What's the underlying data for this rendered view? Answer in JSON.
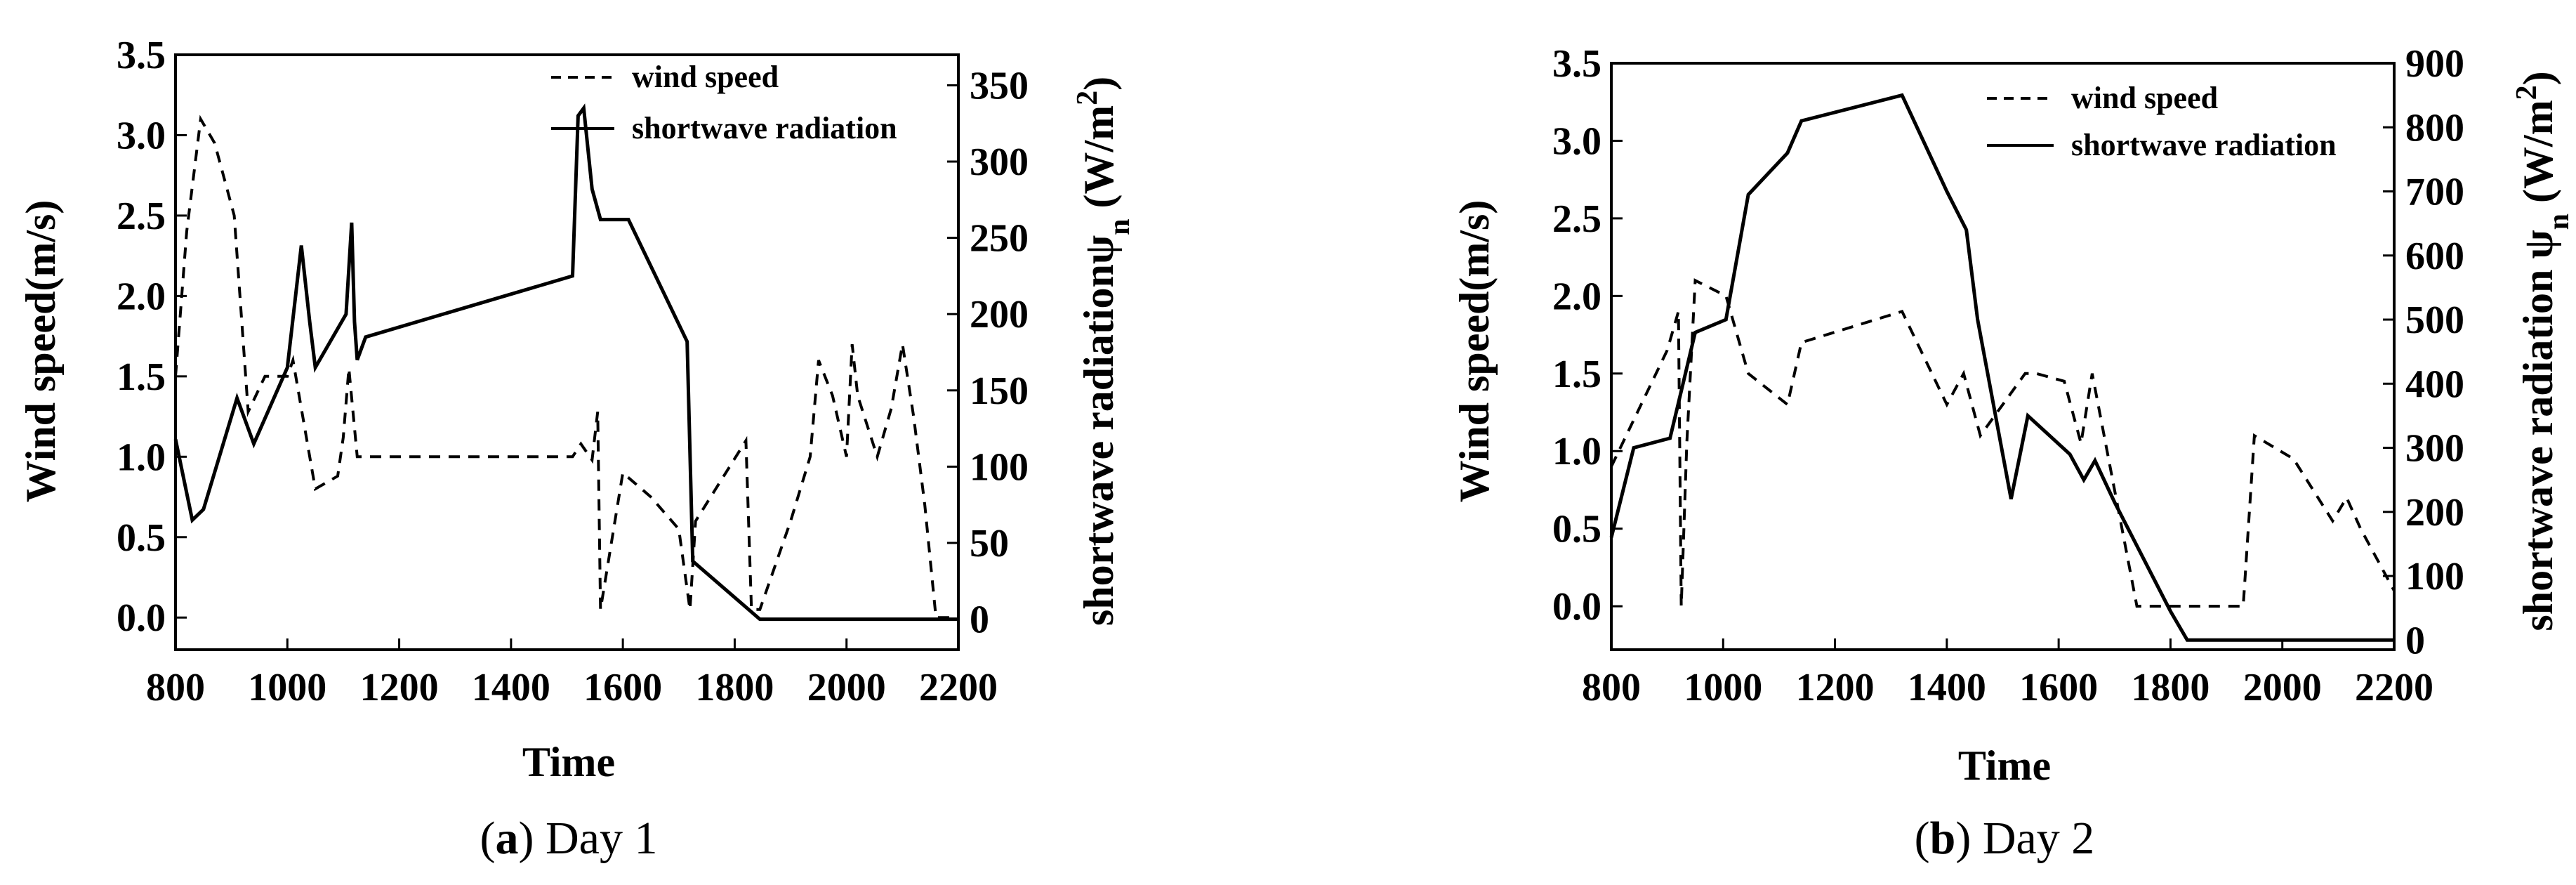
{
  "chart_data": [
    {
      "type": "line",
      "caption": {
        "letter": "a",
        "text": "Day 1"
      },
      "xlabel": "Time",
      "ylabel": "Wind speed(m/s)",
      "y2label": {
        "main": "shortwave radiation",
        "sym": "ψ",
        "sub": "n",
        "unit_open": " (W/m",
        "sup": "2",
        "unit_close": ")"
      },
      "xlim": [
        800,
        2200
      ],
      "ylim": [
        -0.2,
        3.5
      ],
      "y2lim": [
        -20,
        370
      ],
      "xticks": [
        "800",
        "1000",
        "1200",
        "1400",
        "1600",
        "1800",
        "2000",
        "2200"
      ],
      "yticks": [
        "0.0",
        "0.5",
        "1.0",
        "1.5",
        "2.0",
        "2.5",
        "3.0",
        "3.5"
      ],
      "y2ticks": [
        "0",
        "50",
        "100",
        "150",
        "200",
        "250",
        "300",
        "350"
      ],
      "legend_position": "top-right",
      "series": [
        {
          "name": "wind speed",
          "axis": "left",
          "style": "dashed",
          "x": [
            800,
            820,
            845,
            870,
            905,
            930,
            960,
            1000,
            1010,
            1050,
            1090,
            1100,
            1110,
            1125,
            1510,
            1525,
            1545,
            1555,
            1560,
            1600,
            1650,
            1700,
            1720,
            1730,
            1820,
            1830,
            1845,
            1900,
            1935,
            1950,
            1975,
            2000,
            2010,
            2020,
            2055,
            2080,
            2100,
            2120,
            2140,
            2160,
            2200
          ],
          "y": [
            1.5,
            2.4,
            3.1,
            2.95,
            2.5,
            1.28,
            1.5,
            1.5,
            1.6,
            0.8,
            0.88,
            1.12,
            1.55,
            1.0,
            1.0,
            1.08,
            0.98,
            1.28,
            0.05,
            0.9,
            0.75,
            0.55,
            0.05,
            0.6,
            1.1,
            0.05,
            0.05,
            0.6,
            1.0,
            1.6,
            1.38,
            1.0,
            1.7,
            1.38,
            1.0,
            1.3,
            1.7,
            1.25,
            0.7,
            0.0,
            0.0
          ]
        },
        {
          "name": "shortwave radiation",
          "axis": "right",
          "style": "solid",
          "x": [
            800,
            830,
            850,
            910,
            940,
            1000,
            1025,
            1040,
            1050,
            1105,
            1115,
            1120,
            1125,
            1140,
            1510,
            1520,
            1530,
            1545,
            1560,
            1610,
            1715,
            1725,
            1845,
            2200
          ],
          "y": [
            118,
            65,
            72,
            145,
            115,
            165,
            245,
            195,
            165,
            200,
            260,
            195,
            170,
            185,
            225,
            330,
            335,
            282,
            262,
            262,
            182,
            38,
            0,
            0
          ]
        }
      ]
    },
    {
      "type": "line",
      "caption": {
        "letter": "b",
        "text": "Day 2"
      },
      "xlabel": "Time",
      "ylabel": "Wind speed(m/s)",
      "y2label": {
        "main": "shortwave radiation  ",
        "sym": "ψ",
        "sub": "n",
        "unit_open": " (W/m",
        "sup": "2",
        "unit_close": ")"
      },
      "xlim": [
        800,
        2200
      ],
      "ylim": [
        -0.28,
        3.5
      ],
      "y2lim": [
        -15,
        900
      ],
      "xticks": [
        "800",
        "1000",
        "1200",
        "1400",
        "1600",
        "1800",
        "2000",
        "2200"
      ],
      "yticks": [
        "0.0",
        "0.5",
        "1.0",
        "1.5",
        "2.0",
        "2.5",
        "3.0",
        "3.5"
      ],
      "y2ticks": [
        "0",
        "100",
        "200",
        "300",
        "400",
        "500",
        "600",
        "700",
        "800",
        "900"
      ],
      "legend_position": "top-right",
      "series": [
        {
          "name": "wind speed",
          "axis": "left",
          "style": "dashed",
          "x": [
            800,
            900,
            920,
            925,
            935,
            950,
            1005,
            1045,
            1115,
            1140,
            1320,
            1400,
            1430,
            1460,
            1540,
            1560,
            1610,
            1640,
            1660,
            1740,
            1780,
            1930,
            1950,
            2020,
            2090,
            2115,
            2140,
            2200
          ],
          "y": [
            0.9,
            1.65,
            1.9,
            0.0,
            1.05,
            2.1,
            2.0,
            1.5,
            1.3,
            1.7,
            1.9,
            1.3,
            1.5,
            1.1,
            1.5,
            1.5,
            1.45,
            1.05,
            1.5,
            0.0,
            0.0,
            0.0,
            1.1,
            0.95,
            0.55,
            0.7,
            0.5,
            0.1
          ]
        },
        {
          "name": "shortwave radiation",
          "axis": "right",
          "style": "solid",
          "x": [
            800,
            840,
            905,
            950,
            1005,
            1045,
            1115,
            1140,
            1320,
            1400,
            1435,
            1455,
            1515,
            1545,
            1620,
            1645,
            1665,
            1700,
            1800,
            1830,
            2200
          ],
          "y": [
            160,
            300,
            315,
            480,
            500,
            695,
            760,
            810,
            850,
            700,
            640,
            500,
            220,
            350,
            290,
            250,
            280,
            215,
            45,
            0,
            0
          ]
        }
      ]
    }
  ]
}
